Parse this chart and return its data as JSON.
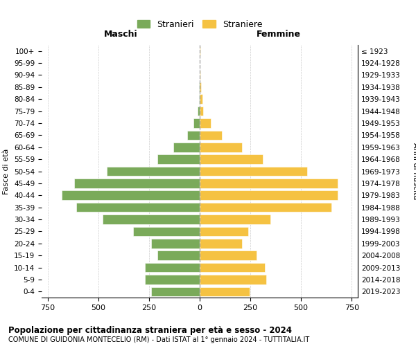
{
  "age_groups": [
    "0-4",
    "5-9",
    "10-14",
    "15-19",
    "20-24",
    "25-29",
    "30-34",
    "35-39",
    "40-44",
    "45-49",
    "50-54",
    "55-59",
    "60-64",
    "65-69",
    "70-74",
    "75-79",
    "80-84",
    "85-89",
    "90-94",
    "95-99",
    "100+"
  ],
  "birth_years": [
    "2019-2023",
    "2014-2018",
    "2009-2013",
    "2004-2008",
    "1999-2003",
    "1994-1998",
    "1989-1993",
    "1984-1988",
    "1979-1983",
    "1974-1978",
    "1969-1973",
    "1964-1968",
    "1959-1963",
    "1954-1958",
    "1949-1953",
    "1944-1948",
    "1939-1943",
    "1934-1938",
    "1929-1933",
    "1924-1928",
    "≤ 1923"
  ],
  "males": [
    240,
    270,
    270,
    210,
    240,
    330,
    480,
    610,
    680,
    620,
    460,
    210,
    130,
    60,
    30,
    10,
    5,
    3,
    1,
    0,
    0
  ],
  "females": [
    245,
    330,
    320,
    280,
    210,
    240,
    350,
    650,
    680,
    680,
    530,
    310,
    210,
    110,
    55,
    18,
    12,
    8,
    3,
    1,
    2
  ],
  "male_color": "#7aaa5a",
  "female_color": "#f5c242",
  "background_color": "#ffffff",
  "grid_color": "#cccccc",
  "title": "Popolazione per cittadinanza straniera per età e sesso - 2024",
  "subtitle": "COMUNE DI GUIDONIA MONTECELIO (RM) - Dati ISTAT al 1° gennaio 2024 - TUTTITALIA.IT",
  "xlabel_left": "Maschi",
  "xlabel_right": "Femmine",
  "ylabel_left": "Fasce di età",
  "ylabel_right": "Anni di nascita",
  "legend_male": "Stranieri",
  "legend_female": "Straniere",
  "xlim": 780
}
